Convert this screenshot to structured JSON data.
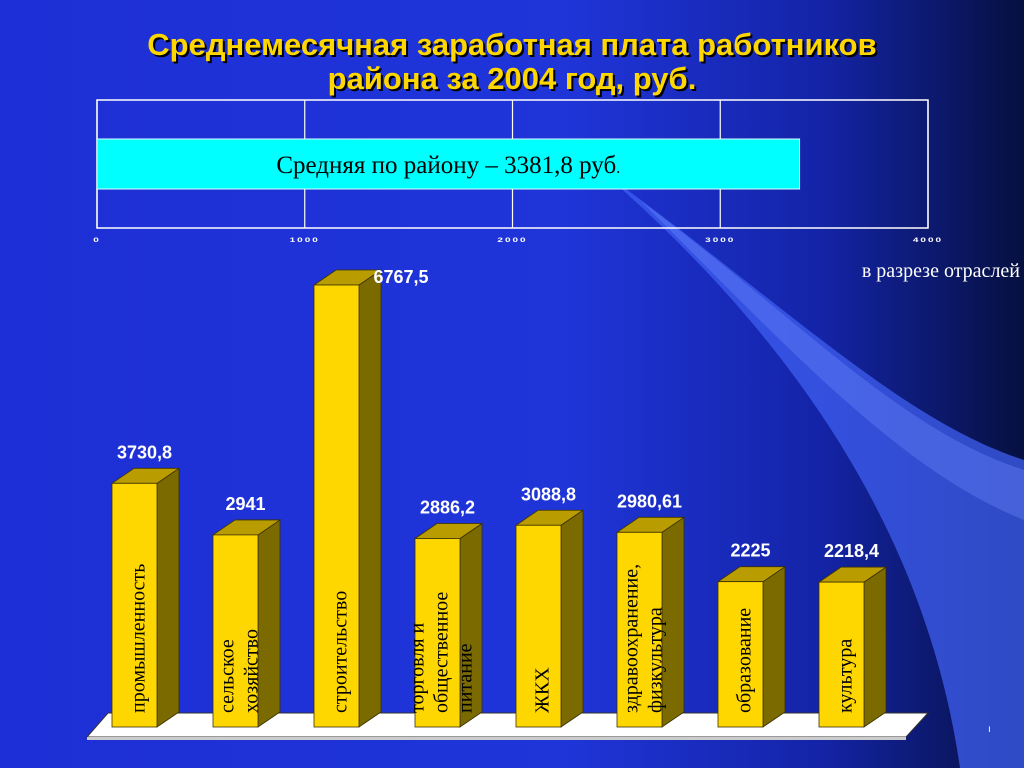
{
  "title": {
    "line1": "Среднемесячная заработная плата работников",
    "line2": "района за 2004 год, руб."
  },
  "subtitle": "в разрезе отраслей",
  "slide_mark": "ı",
  "colors": {
    "background": "#1f35d8",
    "title": "#ffd700",
    "bar_front": "#ffd700",
    "bar_side": "#7a6a00",
    "bar_top": "#b89c00",
    "avg_bar": "#00ffff"
  },
  "chart_data": [
    {
      "type": "bar",
      "orientation": "horizontal",
      "categories": [
        ""
      ],
      "values": [
        3381.8
      ],
      "bar_label": "Средняя по району – 3381,8 руб",
      "bar_label_suffix": ".",
      "xlim": [
        0,
        4000
      ],
      "xticks": [
        "0",
        "1000",
        "2000",
        "3000",
        "4000"
      ],
      "grid": true
    },
    {
      "type": "bar",
      "style": "3d",
      "categories": [
        "промышленность",
        "сельское хозяйство",
        "строительство",
        "торговля и общественное питание",
        "ЖКХ",
        "здравоохранение, физкультура",
        "образование",
        "культура"
      ],
      "category_lines": [
        [
          "промышленность"
        ],
        [
          "сельское",
          "хозяйство"
        ],
        [
          "строительство"
        ],
        [
          "торговля и",
          "общественное",
          "питание"
        ],
        [
          "ЖКХ"
        ],
        [
          "здравоохранение,",
          "физкультура"
        ],
        [
          "образование"
        ],
        [
          "культура"
        ]
      ],
      "values": [
        3730.8,
        2941,
        6767.5,
        2886.2,
        3088.8,
        2980.61,
        2225,
        2218.4
      ],
      "data_labels": [
        "3730,8",
        "2941",
        "6767,5",
        "2886,2",
        "3088,8",
        "2980,61",
        "2225",
        "2218,4"
      ],
      "ylim": [
        0,
        7000
      ],
      "grid": false
    }
  ]
}
